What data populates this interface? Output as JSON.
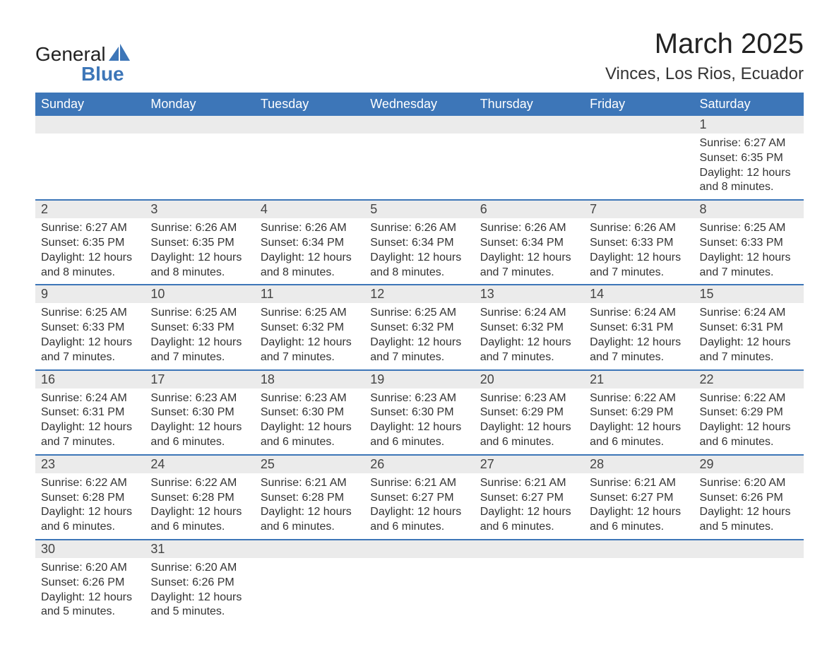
{
  "logo": {
    "text_top": "General",
    "text_bottom": "Blue",
    "icon_color": "#3d76b8"
  },
  "title": "March 2025",
  "location": "Vinces, Los Rios, Ecuador",
  "colors": {
    "header_bg": "#3d76b8",
    "header_fg": "#ffffff",
    "daynum_bg": "#ebebeb",
    "row_border": "#3d76b8",
    "text": "#333333",
    "page_bg": "#ffffff"
  },
  "typography": {
    "title_fontsize": 40,
    "location_fontsize": 24,
    "header_fontsize": 18,
    "daynum_fontsize": 18,
    "body_fontsize": 16,
    "font_family": "Arial"
  },
  "calendar": {
    "type": "table",
    "columns": [
      "Sunday",
      "Monday",
      "Tuesday",
      "Wednesday",
      "Thursday",
      "Friday",
      "Saturday"
    ],
    "weeks": [
      [
        null,
        null,
        null,
        null,
        null,
        null,
        {
          "day": "1",
          "sunrise": "Sunrise: 6:27 AM",
          "sunset": "Sunset: 6:35 PM",
          "daylight": "Daylight: 12 hours and 8 minutes."
        }
      ],
      [
        {
          "day": "2",
          "sunrise": "Sunrise: 6:27 AM",
          "sunset": "Sunset: 6:35 PM",
          "daylight": "Daylight: 12 hours and 8 minutes."
        },
        {
          "day": "3",
          "sunrise": "Sunrise: 6:26 AM",
          "sunset": "Sunset: 6:35 PM",
          "daylight": "Daylight: 12 hours and 8 minutes."
        },
        {
          "day": "4",
          "sunrise": "Sunrise: 6:26 AM",
          "sunset": "Sunset: 6:34 PM",
          "daylight": "Daylight: 12 hours and 8 minutes."
        },
        {
          "day": "5",
          "sunrise": "Sunrise: 6:26 AM",
          "sunset": "Sunset: 6:34 PM",
          "daylight": "Daylight: 12 hours and 8 minutes."
        },
        {
          "day": "6",
          "sunrise": "Sunrise: 6:26 AM",
          "sunset": "Sunset: 6:34 PM",
          "daylight": "Daylight: 12 hours and 7 minutes."
        },
        {
          "day": "7",
          "sunrise": "Sunrise: 6:26 AM",
          "sunset": "Sunset: 6:33 PM",
          "daylight": "Daylight: 12 hours and 7 minutes."
        },
        {
          "day": "8",
          "sunrise": "Sunrise: 6:25 AM",
          "sunset": "Sunset: 6:33 PM",
          "daylight": "Daylight: 12 hours and 7 minutes."
        }
      ],
      [
        {
          "day": "9",
          "sunrise": "Sunrise: 6:25 AM",
          "sunset": "Sunset: 6:33 PM",
          "daylight": "Daylight: 12 hours and 7 minutes."
        },
        {
          "day": "10",
          "sunrise": "Sunrise: 6:25 AM",
          "sunset": "Sunset: 6:33 PM",
          "daylight": "Daylight: 12 hours and 7 minutes."
        },
        {
          "day": "11",
          "sunrise": "Sunrise: 6:25 AM",
          "sunset": "Sunset: 6:32 PM",
          "daylight": "Daylight: 12 hours and 7 minutes."
        },
        {
          "day": "12",
          "sunrise": "Sunrise: 6:25 AM",
          "sunset": "Sunset: 6:32 PM",
          "daylight": "Daylight: 12 hours and 7 minutes."
        },
        {
          "day": "13",
          "sunrise": "Sunrise: 6:24 AM",
          "sunset": "Sunset: 6:32 PM",
          "daylight": "Daylight: 12 hours and 7 minutes."
        },
        {
          "day": "14",
          "sunrise": "Sunrise: 6:24 AM",
          "sunset": "Sunset: 6:31 PM",
          "daylight": "Daylight: 12 hours and 7 minutes."
        },
        {
          "day": "15",
          "sunrise": "Sunrise: 6:24 AM",
          "sunset": "Sunset: 6:31 PM",
          "daylight": "Daylight: 12 hours and 7 minutes."
        }
      ],
      [
        {
          "day": "16",
          "sunrise": "Sunrise: 6:24 AM",
          "sunset": "Sunset: 6:31 PM",
          "daylight": "Daylight: 12 hours and 7 minutes."
        },
        {
          "day": "17",
          "sunrise": "Sunrise: 6:23 AM",
          "sunset": "Sunset: 6:30 PM",
          "daylight": "Daylight: 12 hours and 6 minutes."
        },
        {
          "day": "18",
          "sunrise": "Sunrise: 6:23 AM",
          "sunset": "Sunset: 6:30 PM",
          "daylight": "Daylight: 12 hours and 6 minutes."
        },
        {
          "day": "19",
          "sunrise": "Sunrise: 6:23 AM",
          "sunset": "Sunset: 6:30 PM",
          "daylight": "Daylight: 12 hours and 6 minutes."
        },
        {
          "day": "20",
          "sunrise": "Sunrise: 6:23 AM",
          "sunset": "Sunset: 6:29 PM",
          "daylight": "Daylight: 12 hours and 6 minutes."
        },
        {
          "day": "21",
          "sunrise": "Sunrise: 6:22 AM",
          "sunset": "Sunset: 6:29 PM",
          "daylight": "Daylight: 12 hours and 6 minutes."
        },
        {
          "day": "22",
          "sunrise": "Sunrise: 6:22 AM",
          "sunset": "Sunset: 6:29 PM",
          "daylight": "Daylight: 12 hours and 6 minutes."
        }
      ],
      [
        {
          "day": "23",
          "sunrise": "Sunrise: 6:22 AM",
          "sunset": "Sunset: 6:28 PM",
          "daylight": "Daylight: 12 hours and 6 minutes."
        },
        {
          "day": "24",
          "sunrise": "Sunrise: 6:22 AM",
          "sunset": "Sunset: 6:28 PM",
          "daylight": "Daylight: 12 hours and 6 minutes."
        },
        {
          "day": "25",
          "sunrise": "Sunrise: 6:21 AM",
          "sunset": "Sunset: 6:28 PM",
          "daylight": "Daylight: 12 hours and 6 minutes."
        },
        {
          "day": "26",
          "sunrise": "Sunrise: 6:21 AM",
          "sunset": "Sunset: 6:27 PM",
          "daylight": "Daylight: 12 hours and 6 minutes."
        },
        {
          "day": "27",
          "sunrise": "Sunrise: 6:21 AM",
          "sunset": "Sunset: 6:27 PM",
          "daylight": "Daylight: 12 hours and 6 minutes."
        },
        {
          "day": "28",
          "sunrise": "Sunrise: 6:21 AM",
          "sunset": "Sunset: 6:27 PM",
          "daylight": "Daylight: 12 hours and 6 minutes."
        },
        {
          "day": "29",
          "sunrise": "Sunrise: 6:20 AM",
          "sunset": "Sunset: 6:26 PM",
          "daylight": "Daylight: 12 hours and 5 minutes."
        }
      ],
      [
        {
          "day": "30",
          "sunrise": "Sunrise: 6:20 AM",
          "sunset": "Sunset: 6:26 PM",
          "daylight": "Daylight: 12 hours and 5 minutes."
        },
        {
          "day": "31",
          "sunrise": "Sunrise: 6:20 AM",
          "sunset": "Sunset: 6:26 PM",
          "daylight": "Daylight: 12 hours and 5 minutes."
        },
        null,
        null,
        null,
        null,
        null
      ]
    ]
  }
}
